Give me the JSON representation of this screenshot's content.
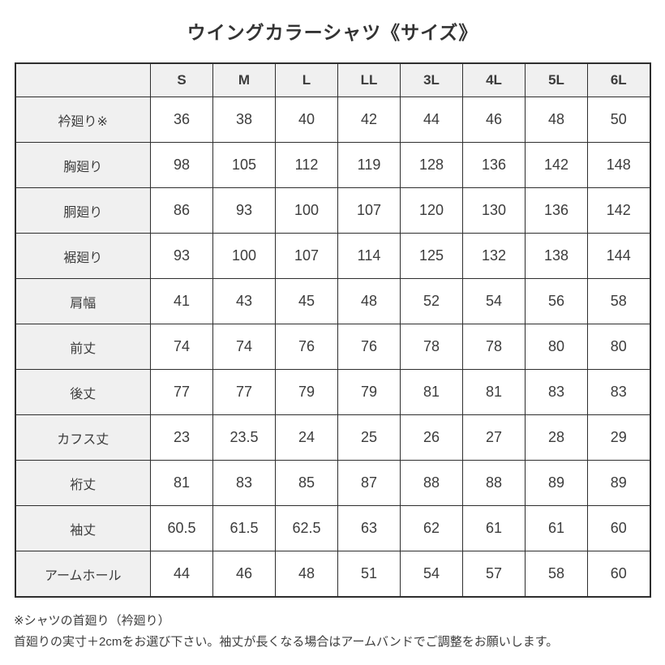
{
  "title": "ウイングカラーシャツ《サイズ》",
  "colors": {
    "background": "#ffffff",
    "header_cell_bg": "#f0f0f0",
    "border": "#2e2e2e",
    "text": "#3c3c3c"
  },
  "chart_data": {
    "type": "table",
    "title": "ウイングカラーシャツ《サイズ》",
    "columns": [
      "",
      "S",
      "M",
      "L",
      "LL",
      "3L",
      "4L",
      "5L",
      "6L"
    ],
    "rows": [
      {
        "label": "衿廻り※",
        "values": [
          "36",
          "38",
          "40",
          "42",
          "44",
          "46",
          "48",
          "50"
        ]
      },
      {
        "label": "胸廻り",
        "values": [
          "98",
          "105",
          "112",
          "119",
          "128",
          "136",
          "142",
          "148"
        ]
      },
      {
        "label": "胴廻り",
        "values": [
          "86",
          "93",
          "100",
          "107",
          "120",
          "130",
          "136",
          "142"
        ]
      },
      {
        "label": "裾廻り",
        "values": [
          "93",
          "100",
          "107",
          "114",
          "125",
          "132",
          "138",
          "144"
        ]
      },
      {
        "label": "肩幅",
        "values": [
          "41",
          "43",
          "45",
          "48",
          "52",
          "54",
          "56",
          "58"
        ]
      },
      {
        "label": "前丈",
        "values": [
          "74",
          "74",
          "76",
          "76",
          "78",
          "78",
          "80",
          "80"
        ]
      },
      {
        "label": "後丈",
        "values": [
          "77",
          "77",
          "79",
          "79",
          "81",
          "81",
          "83",
          "83"
        ]
      },
      {
        "label": "カフス丈",
        "values": [
          "23",
          "23.5",
          "24",
          "25",
          "26",
          "27",
          "28",
          "29"
        ]
      },
      {
        "label": "裄丈",
        "values": [
          "81",
          "83",
          "85",
          "87",
          "88",
          "88",
          "89",
          "89"
        ]
      },
      {
        "label": "袖丈",
        "values": [
          "60.5",
          "61.5",
          "62.5",
          "63",
          "62",
          "61",
          "61",
          "60"
        ]
      },
      {
        "label": "アームホール",
        "values": [
          "44",
          "46",
          "48",
          "51",
          "54",
          "57",
          "58",
          "60"
        ]
      }
    ]
  },
  "footnotes": {
    "line1": "※シャツの首廻り（衿廻り）",
    "line2": "首廻りの実寸＋2cmをお選び下さい。袖丈が長くなる場合はアームバンドでご調整をお願いします。"
  }
}
